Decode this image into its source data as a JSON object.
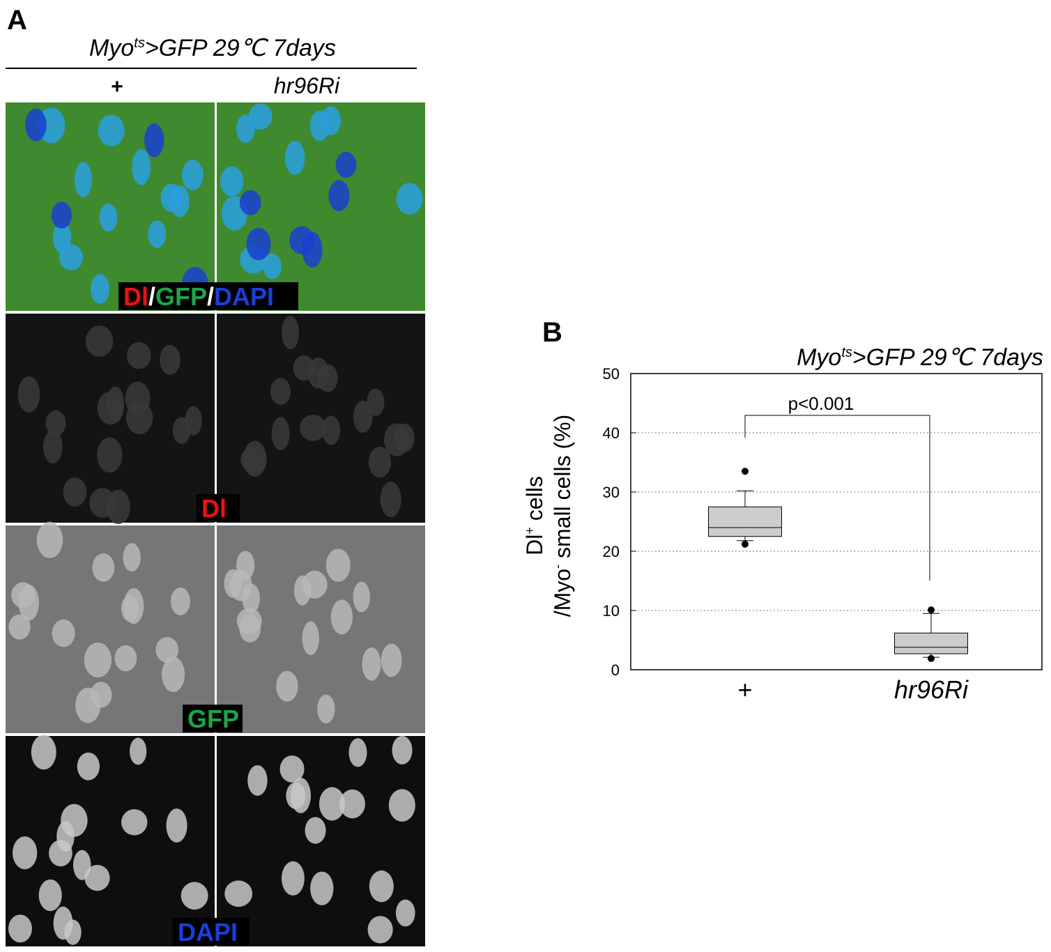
{
  "panel_a": {
    "label": "A",
    "header": {
      "main": "Myo",
      "sup": "ts",
      "rest": ">GFP 29℃ 7days"
    },
    "columns": [
      "+",
      "hr96Ri"
    ],
    "rows": [
      {
        "parts": [
          "Dl",
          "/",
          "GFP",
          "/",
          "DAPI"
        ]
      },
      {
        "parts": [
          "Dl"
        ]
      },
      {
        "parts": [
          "GFP"
        ]
      },
      {
        "parts": [
          "DAPI"
        ]
      }
    ]
  },
  "chart_data": {
    "type": "box",
    "label": "B",
    "title": {
      "main": "Myo",
      "sup": "ts",
      "rest": ">GFP 29℃ 7days"
    },
    "ylabel": {
      "line1": {
        "main": "Dl",
        "sup": "+",
        "rest": " cells"
      },
      "line2": {
        "main": "/Myo",
        "sup": "-",
        "rest": " small cells (%)"
      }
    },
    "categories": [
      "+",
      "hr96Ri"
    ],
    "boxes": [
      {
        "whislo": 21.8,
        "q1": 22.5,
        "med": 24,
        "q3": 27.5,
        "whishi": 30.2,
        "fliers": [
          21.2,
          33.5
        ]
      },
      {
        "whislo": 2.1,
        "q1": 2.7,
        "med": 3.8,
        "q3": 6.2,
        "whishi": 9.5,
        "fliers": [
          1.9,
          10.1
        ]
      }
    ],
    "color": "#cccccc",
    "annotation": "p<0.001",
    "ylim": [
      0,
      50
    ],
    "yticks": [
      0,
      10,
      20,
      30,
      40,
      50
    ],
    "grid": true
  }
}
